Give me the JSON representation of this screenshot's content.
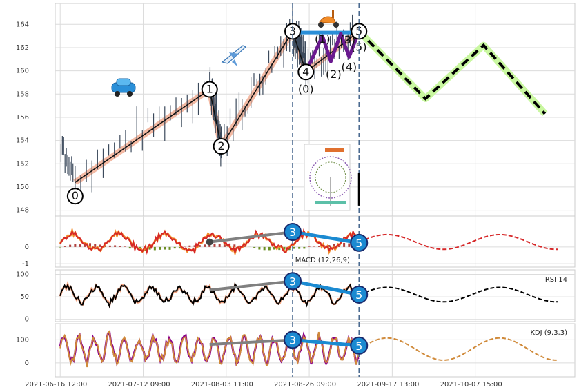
{
  "chart_data": {
    "type": "line",
    "x_ticks": [
      "2021-06-16 12:00",
      "2021-07-12 09:00",
      "2021-08-03 11:00",
      "2021-08-26 09:00",
      "2021-09-17 13:00",
      "2021-10-07 15:00"
    ],
    "price_panel": {
      "y_ticks": [
        148,
        150,
        152,
        154,
        156,
        158,
        160,
        162,
        164
      ],
      "ylim": [
        147.5,
        165.8
      ],
      "elliott_main": {
        "labels": [
          "0",
          "1",
          "2",
          "3",
          "4",
          "5"
        ],
        "x": [
          0.9,
          9.0,
          9.7,
          14.0,
          14.8,
          18.0
        ],
        "y": [
          150.4,
          158.4,
          153.5,
          163.4,
          159.9,
          163.4
        ]
      },
      "elliott_sub": {
        "labels": [
          "(0)",
          "(1)",
          "(2)",
          "(3)",
          "(4)",
          "(5)"
        ],
        "x": [
          14.8,
          15.8,
          16.3,
          16.9,
          17.4,
          18.0
        ],
        "y": [
          159.9,
          163.0,
          160.8,
          163.2,
          161.2,
          163.4
        ]
      },
      "top_line": {
        "x": [
          14.0,
          18.0
        ],
        "y": [
          163.3,
          163.3
        ]
      },
      "forecast": {
        "x": [
          18.0,
          22.0,
          25.5,
          29.2
        ],
        "y": [
          163.4,
          157.6,
          162.2,
          156.3
        ]
      },
      "annotation_labels": [
        "0",
        "1",
        "2",
        "3",
        "4",
        "5",
        "(0)",
        "(1)",
        "(2)",
        "(3)",
        "(4)",
        "(5)"
      ],
      "icons": [
        "car-icon",
        "airplane-icon",
        "scooter-icon",
        "ferris-wheel-icon"
      ]
    },
    "macd_panel": {
      "label": "MACD (12,26,9)",
      "y_ticks": [
        -1,
        0
      ],
      "ylim": [
        -1.2,
        1.85
      ]
    },
    "rsi_panel": {
      "label": "RSI 14",
      "y_ticks": [
        0,
        50,
        100
      ],
      "ylim": [
        -5,
        110
      ]
    },
    "kdj_panel": {
      "label": "KDJ (9,3,3)",
      "y_ticks": [
        0,
        100
      ],
      "ylim": [
        -60,
        170
      ]
    },
    "indicator_markers": {
      "labels": [
        "3",
        "5"
      ],
      "x": [
        14.0,
        18.0
      ]
    },
    "vlines_x": [
      14.0,
      18.0
    ],
    "colors": {
      "marker_fill": "#1b8ad1",
      "wave_line": "#f2b39a",
      "sub_wave": "#6a1a8f",
      "forecast_glow": "#c9f7a0",
      "dash": "#000000",
      "vline": "#4a6a90",
      "grey_line": "#808080",
      "kdj": "#8b008b"
    }
  }
}
